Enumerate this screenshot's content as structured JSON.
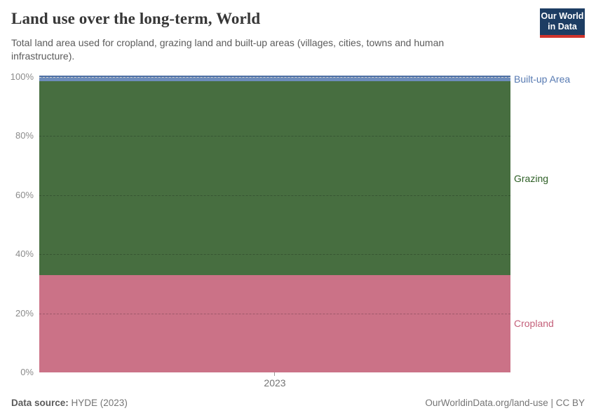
{
  "header": {
    "title": "Land use over the long-term, World",
    "subtitle": "Total land area used for cropland, grazing land and built-up areas (villages, cities, towns and human infrastructure).",
    "logo": {
      "line1": "Our World",
      "line2": "in Data",
      "bg_color": "#1D3D63",
      "bar_color": "#D0342C"
    }
  },
  "chart_data": {
    "type": "area",
    "stacked": true,
    "normalized_percent": true,
    "title": "Land use over the long-term, World",
    "x": [
      "2023"
    ],
    "xticks": [
      "2023"
    ],
    "xlabel": "",
    "ylabel": "",
    "ylim": [
      0,
      100
    ],
    "yticks": [
      {
        "value": 0,
        "label": "0%"
      },
      {
        "value": 20,
        "label": "20%"
      },
      {
        "value": 40,
        "label": "40%"
      },
      {
        "value": 60,
        "label": "60%"
      },
      {
        "value": 80,
        "label": "80%"
      },
      {
        "value": 100,
        "label": "100%"
      }
    ],
    "grid": "dashed-horizontal",
    "legend_position": "right-edge-labels",
    "series": [
      {
        "name": "Cropland",
        "values": [
          33
        ],
        "fill_color": "#CB7287",
        "label_color": "#C4607A"
      },
      {
        "name": "Grazing",
        "values": [
          65.5
        ],
        "fill_color": "#476E40",
        "label_color": "#2C5E24"
      },
      {
        "name": "Built-up Area",
        "values": [
          1.5
        ],
        "fill_color": "#6D8CBB",
        "label_color": "#577AB2",
        "top_line_color": "#4C6FA4"
      }
    ]
  },
  "footer": {
    "source_label": "Data source:",
    "source_value": " HYDE (2023)",
    "link_text": "OurWorldinData.org/land-use | CC BY"
  }
}
